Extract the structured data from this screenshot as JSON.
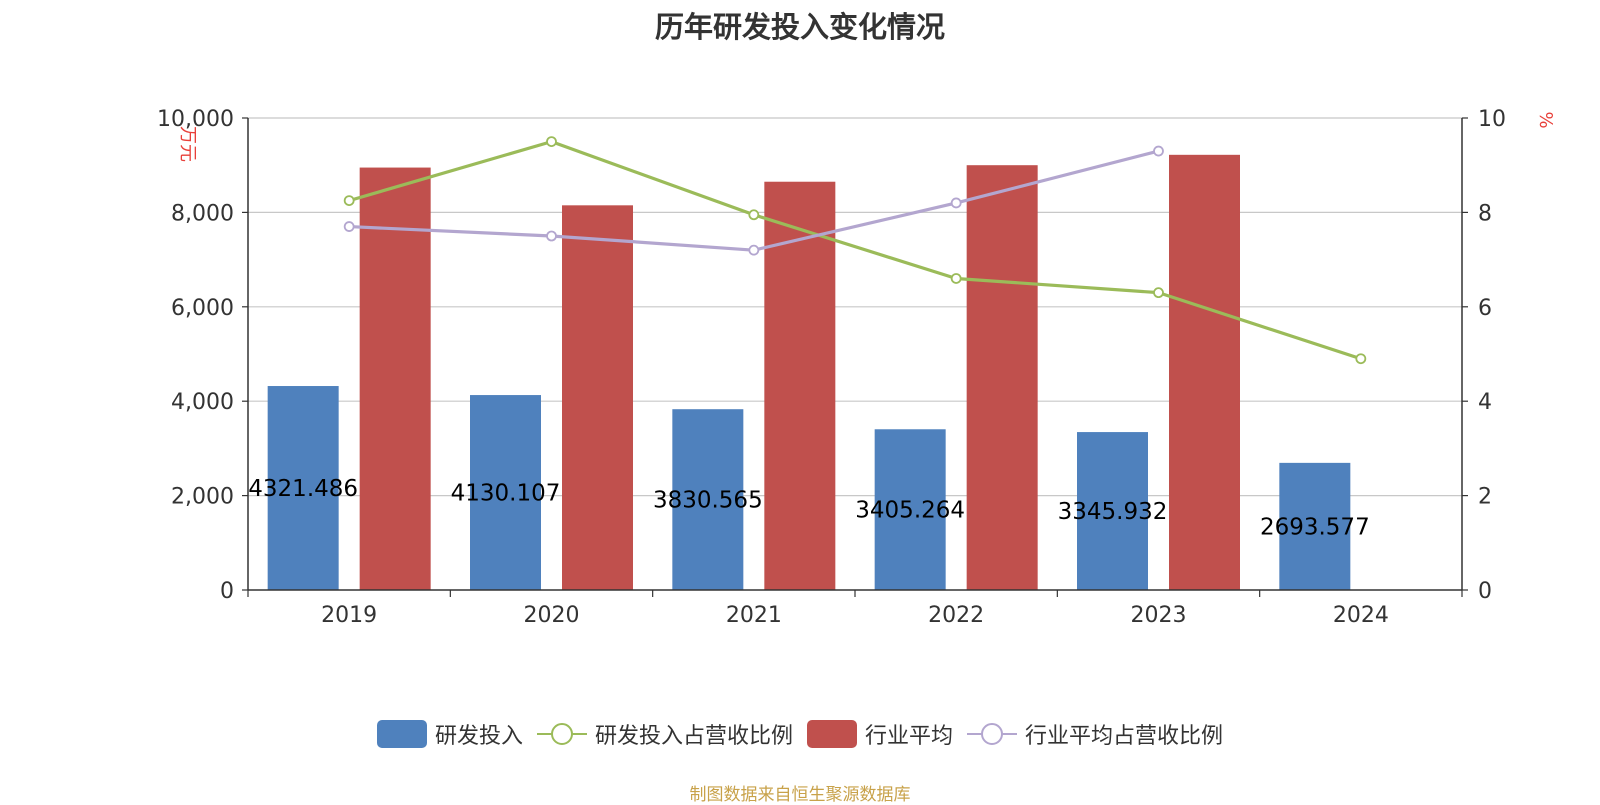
{
  "title": "历年研发投入变化情况",
  "source_note": "制图数据来自恒生聚源数据库",
  "colors": {
    "rd_bar": "#4f81bd",
    "industry_bar": "#c0504d",
    "rd_ratio_line": "#9bbb59",
    "industry_ratio_line": "#b3a6cf",
    "axis_unit": "#e8403a",
    "grid": "#c8c8c8"
  },
  "legend": [
    {
      "label": "研发投入",
      "kind": "bar",
      "color": "#4f81bd"
    },
    {
      "label": "研发投入占营收比例",
      "kind": "line",
      "color": "#9bbb59"
    },
    {
      "label": "行业平均",
      "kind": "bar",
      "color": "#c0504d"
    },
    {
      "label": "行业平均占营收比例",
      "kind": "line",
      "color": "#b3a6cf"
    }
  ],
  "chart_data": {
    "type": "bar",
    "categories": [
      "2019",
      "2020",
      "2021",
      "2022",
      "2023",
      "2024"
    ],
    "y_left": {
      "label": "万元",
      "min": 0,
      "max": 10000,
      "ticks": [
        "0",
        "2,000",
        "4,000",
        "6,000",
        "8,000",
        "10,000"
      ],
      "tick_values": [
        0,
        2000,
        4000,
        6000,
        8000,
        10000
      ]
    },
    "y_right": {
      "label": "%",
      "min": 0,
      "max": 10,
      "ticks": [
        "0",
        "2",
        "4",
        "6",
        "8",
        "10"
      ],
      "tick_values": [
        0,
        2,
        4,
        6,
        8,
        10
      ]
    },
    "grid": true,
    "legend_position": "bottom",
    "series": [
      {
        "name": "研发投入",
        "type": "bar",
        "axis": "left",
        "values": [
          4321.486,
          4130.107,
          3830.565,
          3405.264,
          3345.932,
          2693.577
        ],
        "labels": [
          "4321.486",
          "4130.107",
          "3830.565",
          "3405.264",
          "3345.932",
          "2693.577"
        ]
      },
      {
        "name": "行业平均",
        "type": "bar",
        "axis": "left",
        "values": [
          8950,
          8150,
          8650,
          9000,
          9220,
          null
        ]
      },
      {
        "name": "研发投入占营收比例",
        "type": "line",
        "axis": "right",
        "values": [
          8.25,
          9.5,
          7.95,
          6.6,
          6.3,
          4.9
        ]
      },
      {
        "name": "行业平均占营收比例",
        "type": "line",
        "axis": "right",
        "values": [
          7.7,
          7.5,
          7.2,
          8.2,
          9.3,
          null
        ]
      }
    ]
  }
}
